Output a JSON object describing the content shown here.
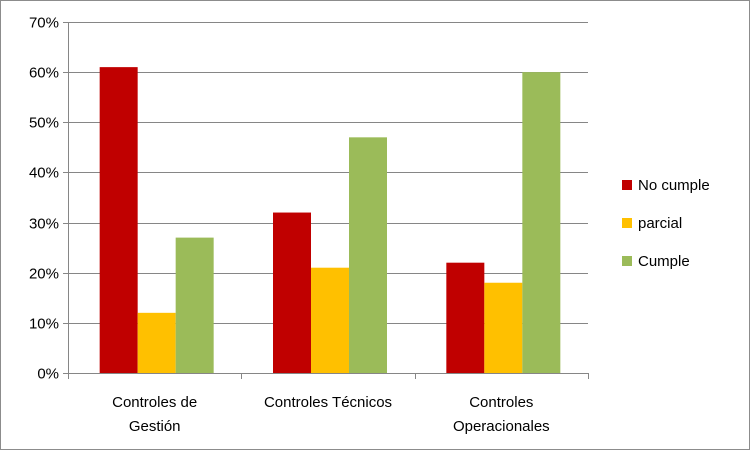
{
  "chart_data": {
    "type": "bar",
    "categories": [
      [
        "Controles de",
        "Gestión"
      ],
      [
        "Controles Técnicos"
      ],
      [
        "Controles",
        "Operacionales"
      ]
    ],
    "series": [
      {
        "name": "No cumple",
        "color": "#C00000",
        "values": [
          61,
          32,
          22
        ]
      },
      {
        "name": "parcial",
        "color": "#FFC000",
        "values": [
          12,
          21,
          18
        ]
      },
      {
        "name": "Cumple",
        "color": "#9BBB59",
        "values": [
          27,
          47,
          60
        ]
      }
    ],
    "ylim": [
      0,
      70
    ],
    "y_ticks": [
      0,
      10,
      20,
      30,
      40,
      50,
      60,
      70
    ],
    "y_tick_labels": [
      "0%",
      "10%",
      "20%",
      "30%",
      "40%",
      "50%",
      "60%",
      "70%"
    ],
    "grid": true,
    "legend_position": "right",
    "title": "",
    "xlabel": "",
    "ylabel": ""
  }
}
